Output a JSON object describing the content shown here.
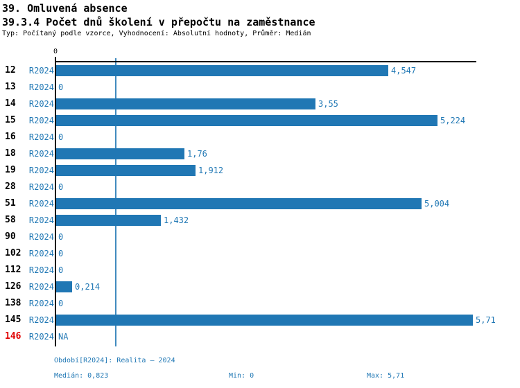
{
  "header": {
    "title1": "39. Omluvená absence",
    "title2": "39.3.4 Počet dnů školení v přepočtu na zaměstnance",
    "subtitle": "Typ: Počítaný podle vzorce, Vyhodnocení: Absolutní hodnoty, Průměr: Medián"
  },
  "axis": {
    "zero_label": "0"
  },
  "colors": {
    "bar": "#2077b4",
    "blue_text": "#1f77b4",
    "highlight_red": "#e00000",
    "axis_black": "#000000"
  },
  "chart_data": {
    "type": "bar",
    "orientation": "horizontal",
    "series_label": "R2024",
    "categories": [
      "12",
      "13",
      "14",
      "15",
      "16",
      "18",
      "19",
      "28",
      "51",
      "58",
      "90",
      "102",
      "112",
      "126",
      "138",
      "145",
      "146"
    ],
    "values": [
      4.547,
      0,
      3.55,
      5.224,
      0,
      1.76,
      1.912,
      0,
      5.004,
      1.432,
      0,
      0,
      0,
      0.214,
      0,
      5.71,
      null
    ],
    "value_labels": [
      "4,547",
      "0",
      "3,55",
      "5,224",
      "0",
      "1,76",
      "1,912",
      "0",
      "5,004",
      "1,432",
      "0",
      "0",
      "0",
      "0,214",
      "0",
      "5,71",
      "NA"
    ],
    "highlighted_categories": [
      "146"
    ],
    "xlim": [
      0,
      5.79
    ],
    "median": 0.823,
    "median_line": true,
    "grid": false,
    "legend": false
  },
  "footer": {
    "period": "Období[R2024]: Realita – 2024",
    "median": "Medián: 0,823",
    "min": "Min: 0",
    "max": "Max: 5,71"
  }
}
